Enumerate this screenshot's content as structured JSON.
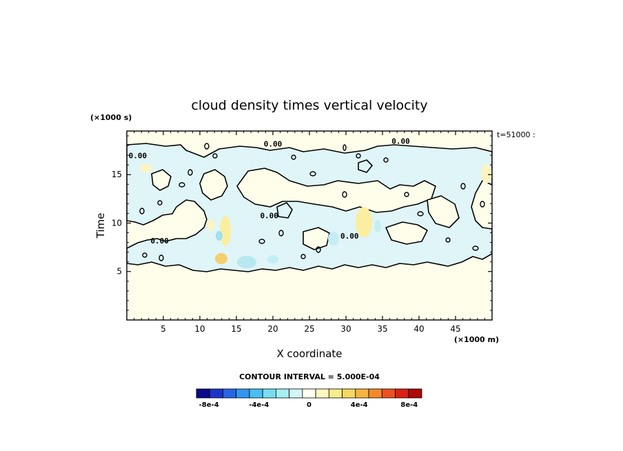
{
  "chart_data": {
    "type": "heatmap",
    "title": "cloud density times vertical velocity",
    "xlabel": "X coordinate",
    "ylabel": "Time",
    "x_unit": "(×1000 m)",
    "y_unit": "(×1000 s)",
    "annotation": "t=51000 :",
    "contour_interval_label": "CONTOUR INTERVAL = 5.000E-04",
    "xlim": [
      0,
      50
    ],
    "ylim": [
      0,
      19.5
    ],
    "x_ticks": [
      5,
      10,
      15,
      20,
      25,
      30,
      35,
      40,
      45
    ],
    "y_ticks": [
      5,
      10,
      15
    ],
    "contour_labels": [
      {
        "text": "0.00",
        "x": 1.5,
        "y": 16.7
      },
      {
        "text": "0.00",
        "x": 20.0,
        "y": 17.9
      },
      {
        "text": "0.00",
        "x": 37.5,
        "y": 18.2
      },
      {
        "text": "0.00",
        "x": 4.5,
        "y": 7.9
      },
      {
        "text": "0.00",
        "x": 19.5,
        "y": 10.5
      },
      {
        "text": "0.00",
        "x": 30.5,
        "y": 8.4
      }
    ],
    "colorbar": {
      "colors": [
        "#0a0a8c",
        "#1b34c8",
        "#2565e6",
        "#3396f0",
        "#49bff2",
        "#78dcf0",
        "#a4eef2",
        "#d2f6f6",
        "#fffff0",
        "#fdf7c0",
        "#f8ec8c",
        "#f6d860",
        "#f6b440",
        "#f48a28",
        "#ec5020",
        "#dc2014",
        "#b00808"
      ],
      "tick_labels": [
        "-8e-4",
        "-4e-4",
        "0",
        "4e-4",
        "8e-4"
      ],
      "tick_values": [
        -0.0008,
        -0.0004,
        0,
        0.0004,
        0.0008
      ],
      "range": [
        -0.0009,
        0.0009
      ]
    },
    "fields": {
      "background": "#fffeea",
      "negative": "#dff5f7"
    }
  }
}
